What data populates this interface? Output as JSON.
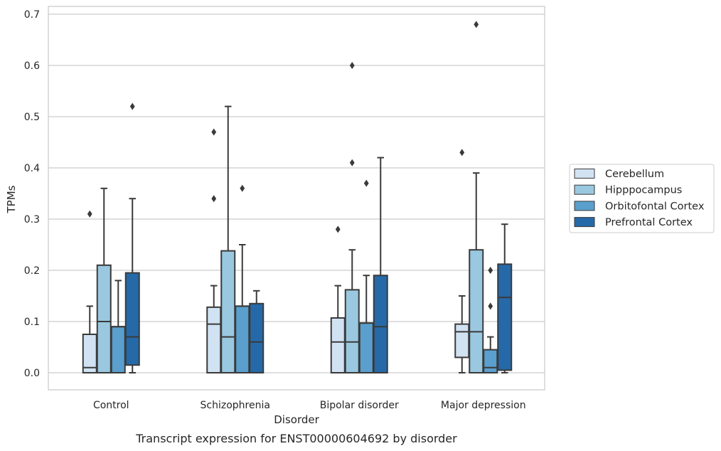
{
  "chart_data": {
    "type": "box",
    "caption": "Transcript expression for ENST00000604692 by disorder",
    "xlabel": "Disorder",
    "ylabel": "TPMs",
    "ylim": [
      -0.033,
      0.715
    ],
    "yticks": [
      0.0,
      0.1,
      0.2,
      0.3,
      0.4,
      0.5,
      0.6,
      0.7
    ],
    "ytick_labels": [
      "0.0",
      "0.1",
      "0.2",
      "0.3",
      "0.4",
      "0.5",
      "0.6",
      "0.7"
    ],
    "grid": true,
    "legend_position": "right",
    "categories": [
      "Control",
      "Schizophrenia",
      "Bipolar disorder",
      "Major depression"
    ],
    "series": [
      {
        "name": "Cerebellum",
        "color": "#d1e2f2",
        "boxes": [
          {
            "whisker_low": 0.0,
            "q1": 0.0,
            "median": 0.01,
            "q3": 0.075,
            "whisker_high": 0.13,
            "outliers": [
              0.31
            ]
          },
          {
            "whisker_low": 0.0,
            "q1": 0.0,
            "median": 0.095,
            "q3": 0.128,
            "whisker_high": 0.17,
            "outliers": [
              0.34,
              0.47
            ]
          },
          {
            "whisker_low": 0.0,
            "q1": 0.0,
            "median": 0.06,
            "q3": 0.107,
            "whisker_high": 0.17,
            "outliers": [
              0.28
            ]
          },
          {
            "whisker_low": 0.0,
            "q1": 0.03,
            "median": 0.08,
            "q3": 0.095,
            "whisker_high": 0.15,
            "outliers": [
              0.43
            ]
          }
        ]
      },
      {
        "name": "Hipppocampus",
        "color": "#9ac8e0",
        "boxes": [
          {
            "whisker_low": 0.0,
            "q1": 0.0,
            "median": 0.1,
            "q3": 0.21,
            "whisker_high": 0.36,
            "outliers": []
          },
          {
            "whisker_low": 0.0,
            "q1": 0.0,
            "median": 0.07,
            "q3": 0.238,
            "whisker_high": 0.52,
            "outliers": []
          },
          {
            "whisker_low": 0.0,
            "q1": 0.0,
            "median": 0.06,
            "q3": 0.162,
            "whisker_high": 0.24,
            "outliers": [
              0.41,
              0.6
            ]
          },
          {
            "whisker_low": 0.0,
            "q1": 0.0,
            "median": 0.08,
            "q3": 0.24,
            "whisker_high": 0.39,
            "outliers": [
              0.68
            ]
          }
        ]
      },
      {
        "name": "Orbitofontal Cortex",
        "color": "#5a9fcd",
        "boxes": [
          {
            "whisker_low": 0.0,
            "q1": 0.0,
            "median": 0.09,
            "q3": 0.09,
            "whisker_high": 0.18,
            "outliers": []
          },
          {
            "whisker_low": 0.0,
            "q1": 0.0,
            "median": 0.13,
            "q3": 0.13,
            "whisker_high": 0.25,
            "outliers": [
              0.36
            ]
          },
          {
            "whisker_low": 0.0,
            "q1": 0.0,
            "median": 0.097,
            "q3": 0.097,
            "whisker_high": 0.19,
            "outliers": [
              0.37
            ]
          },
          {
            "whisker_low": 0.0,
            "q1": 0.0,
            "median": 0.01,
            "q3": 0.045,
            "whisker_high": 0.07,
            "outliers": [
              0.13,
              0.2
            ]
          }
        ]
      },
      {
        "name": "Prefrontal Cortex",
        "color": "#2669a8",
        "boxes": [
          {
            "whisker_low": 0.0,
            "q1": 0.015,
            "median": 0.07,
            "q3": 0.195,
            "whisker_high": 0.34,
            "outliers": [
              0.52
            ]
          },
          {
            "whisker_low": 0.0,
            "q1": 0.0,
            "median": 0.06,
            "q3": 0.135,
            "whisker_high": 0.16,
            "outliers": []
          },
          {
            "whisker_low": 0.0,
            "q1": 0.0,
            "median": 0.09,
            "q3": 0.19,
            "whisker_high": 0.42,
            "outliers": []
          },
          {
            "whisker_low": 0.0,
            "q1": 0.005,
            "median": 0.147,
            "q3": 0.212,
            "whisker_high": 0.29,
            "outliers": []
          }
        ]
      }
    ],
    "colors": {
      "grid": "#cccccc",
      "frame": "#cccccc",
      "lines": "#3a3a3a",
      "text": "#262626"
    }
  }
}
